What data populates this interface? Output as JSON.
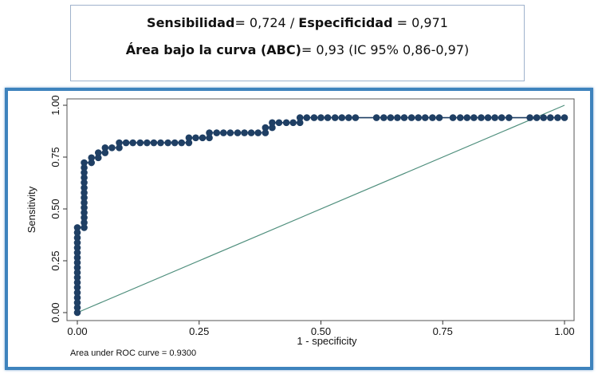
{
  "summary": {
    "sens_label": "Sensibilidad",
    "sens_value": "= 0,724 / ",
    "spec_label": "Especificidad",
    "spec_value": " = 0,971",
    "auc_label": "Área bajo la curva (ABC)",
    "auc_value": "= 0,93 (IC 95% 0,86-0,97)"
  },
  "colors": {
    "curve": "#1f3f64",
    "reference": "#4f8f7d",
    "frame": "#3e83bd"
  },
  "chart_data": {
    "type": "line",
    "xlabel": "1 - specificity",
    "ylabel": "Sensitivity",
    "xlim": [
      0,
      1
    ],
    "ylim": [
      0,
      1
    ],
    "x_ticks": [
      "0.00",
      "0.25",
      "0.50",
      "0.75",
      "1.00"
    ],
    "y_ticks": [
      "0.00",
      "0.25",
      "0.50",
      "0.75",
      "1.00"
    ],
    "note": "Area under ROC curve = 0.9300",
    "reference_line": [
      [
        0,
        0
      ],
      [
        1,
        1
      ]
    ],
    "series": [
      {
        "points": [
          [
            0.0,
            0.0
          ],
          [
            0.0,
            0.024
          ],
          [
            0.0,
            0.048
          ],
          [
            0.0,
            0.072
          ],
          [
            0.0,
            0.096
          ],
          [
            0.0,
            0.121
          ],
          [
            0.0,
            0.145
          ],
          [
            0.0,
            0.169
          ],
          [
            0.0,
            0.193
          ],
          [
            0.0,
            0.217
          ],
          [
            0.0,
            0.241
          ],
          [
            0.0,
            0.265
          ],
          [
            0.0,
            0.289
          ],
          [
            0.0,
            0.313
          ],
          [
            0.0,
            0.337
          ],
          [
            0.0,
            0.361
          ],
          [
            0.0,
            0.386
          ],
          [
            0.0,
            0.41
          ],
          [
            0.014,
            0.41
          ],
          [
            0.014,
            0.434
          ],
          [
            0.014,
            0.458
          ],
          [
            0.014,
            0.482
          ],
          [
            0.014,
            0.506
          ],
          [
            0.014,
            0.53
          ],
          [
            0.014,
            0.554
          ],
          [
            0.014,
            0.578
          ],
          [
            0.014,
            0.602
          ],
          [
            0.014,
            0.627
          ],
          [
            0.014,
            0.651
          ],
          [
            0.014,
            0.675
          ],
          [
            0.014,
            0.699
          ],
          [
            0.014,
            0.723
          ],
          [
            0.029,
            0.723
          ],
          [
            0.029,
            0.747
          ],
          [
            0.043,
            0.747
          ],
          [
            0.043,
            0.771
          ],
          [
            0.057,
            0.771
          ],
          [
            0.057,
            0.795
          ],
          [
            0.071,
            0.795
          ],
          [
            0.086,
            0.795
          ],
          [
            0.086,
            0.819
          ],
          [
            0.1,
            0.819
          ],
          [
            0.114,
            0.819
          ],
          [
            0.129,
            0.819
          ],
          [
            0.143,
            0.819
          ],
          [
            0.157,
            0.819
          ],
          [
            0.171,
            0.819
          ],
          [
            0.186,
            0.819
          ],
          [
            0.2,
            0.819
          ],
          [
            0.214,
            0.819
          ],
          [
            0.229,
            0.819
          ],
          [
            0.229,
            0.843
          ],
          [
            0.243,
            0.843
          ],
          [
            0.257,
            0.843
          ],
          [
            0.271,
            0.843
          ],
          [
            0.271,
            0.867
          ],
          [
            0.286,
            0.867
          ],
          [
            0.3,
            0.867
          ],
          [
            0.314,
            0.867
          ],
          [
            0.329,
            0.867
          ],
          [
            0.343,
            0.867
          ],
          [
            0.357,
            0.867
          ],
          [
            0.371,
            0.867
          ],
          [
            0.386,
            0.867
          ],
          [
            0.386,
            0.892
          ],
          [
            0.4,
            0.892
          ],
          [
            0.4,
            0.916
          ],
          [
            0.414,
            0.916
          ],
          [
            0.429,
            0.916
          ],
          [
            0.443,
            0.916
          ],
          [
            0.457,
            0.916
          ],
          [
            0.457,
            0.94
          ],
          [
            0.471,
            0.94
          ],
          [
            0.486,
            0.94
          ],
          [
            0.5,
            0.94
          ],
          [
            0.514,
            0.94
          ],
          [
            0.529,
            0.94
          ],
          [
            0.543,
            0.94
          ],
          [
            0.557,
            0.94
          ],
          [
            0.571,
            0.94
          ],
          [
            0.614,
            0.94
          ],
          [
            0.629,
            0.94
          ],
          [
            0.643,
            0.94
          ],
          [
            0.657,
            0.94
          ],
          [
            0.671,
            0.94
          ],
          [
            0.686,
            0.94
          ],
          [
            0.7,
            0.94
          ],
          [
            0.714,
            0.94
          ],
          [
            0.729,
            0.94
          ],
          [
            0.743,
            0.94
          ],
          [
            0.771,
            0.94
          ],
          [
            0.786,
            0.94
          ],
          [
            0.8,
            0.94
          ],
          [
            0.814,
            0.94
          ],
          [
            0.829,
            0.94
          ],
          [
            0.843,
            0.94
          ],
          [
            0.857,
            0.94
          ],
          [
            0.871,
            0.94
          ],
          [
            0.886,
            0.94
          ],
          [
            0.929,
            0.94
          ],
          [
            0.943,
            0.94
          ],
          [
            0.957,
            0.94
          ],
          [
            0.971,
            0.94
          ],
          [
            0.986,
            0.94
          ],
          [
            1.0,
            0.94
          ]
        ]
      }
    ]
  }
}
